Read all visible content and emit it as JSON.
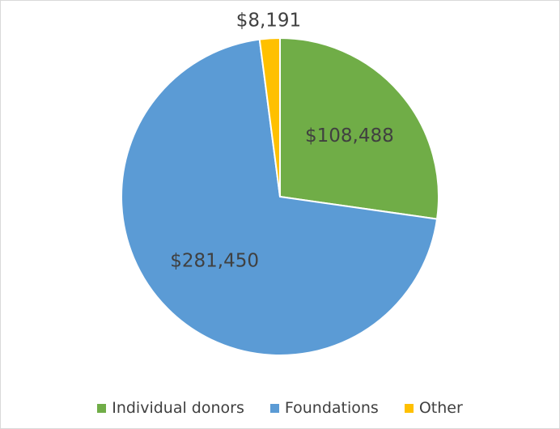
{
  "chart_data": {
    "type": "pie",
    "title": "",
    "start_angle_deg": 0,
    "direction": "clockwise",
    "legend_position": "bottom",
    "slices": [
      {
        "name": "Individual donors",
        "value": 108488,
        "label": "$108,488",
        "color": "#70ad47"
      },
      {
        "name": "Foundations",
        "value": 281450,
        "label": "$281,450",
        "color": "#5b9bd5"
      },
      {
        "name": "Other",
        "value": 8191,
        "label": "$8,191",
        "color": "#ffc000"
      }
    ]
  }
}
